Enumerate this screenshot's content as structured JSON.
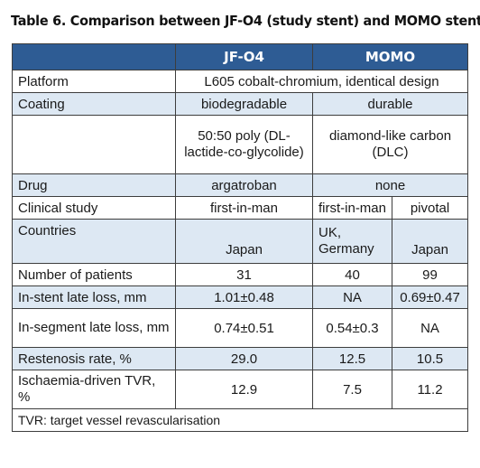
{
  "title": "Table 6. Comparison between JF-O4 (study stent) and MOMO stent.",
  "headers": {
    "jf": "JF-O4",
    "momo": "MOMO"
  },
  "rows": {
    "platform": {
      "label": "Platform",
      "value": "L605 cobalt-chromium, identical design"
    },
    "coating": {
      "label": "Coating",
      "jf": "biodegradable",
      "momo": "durable"
    },
    "coating_detail": {
      "jf": "50:50 poly (DL-lactide-co-glycolide)",
      "momo": "diamond-like carbon (DLC)"
    },
    "drug": {
      "label": "Drug",
      "jf": "argatroban",
      "momo": "none"
    },
    "clinical_study": {
      "label": "Clinical study",
      "jf": "first-in-man",
      "momo_a": "first-in-man",
      "momo_b": "pivotal"
    },
    "countries": {
      "label": "Countries",
      "jf": "Japan",
      "momo_a": "UK, Germany",
      "momo_b": "Japan"
    },
    "patients": {
      "label": "Number of patients",
      "jf": "31",
      "momo_a": "40",
      "momo_b": "99"
    },
    "instent": {
      "label": "In-stent late loss, mm",
      "jf": "1.01±0.48",
      "momo_a": "NA",
      "momo_b": "0.69±0.47"
    },
    "insegment": {
      "label": "In-segment late loss, mm",
      "jf": "0.74±0.51",
      "momo_a": "0.54±0.3",
      "momo_b": "NA"
    },
    "restenosis": {
      "label": "Restenosis rate, %",
      "jf": "29.0",
      "momo_a": "12.5",
      "momo_b": "10.5"
    },
    "tvr": {
      "label": "Ischaemia-driven TVR, %",
      "jf": "12.9",
      "momo_a": "7.5",
      "momo_b": "11.2"
    }
  },
  "footnote": "TVR: target vessel revascularisation",
  "colors": {
    "header_bg": "#2e5c94",
    "header_text": "#ffffff",
    "shade": "#dde8f3",
    "border": "#3d3d3d"
  }
}
